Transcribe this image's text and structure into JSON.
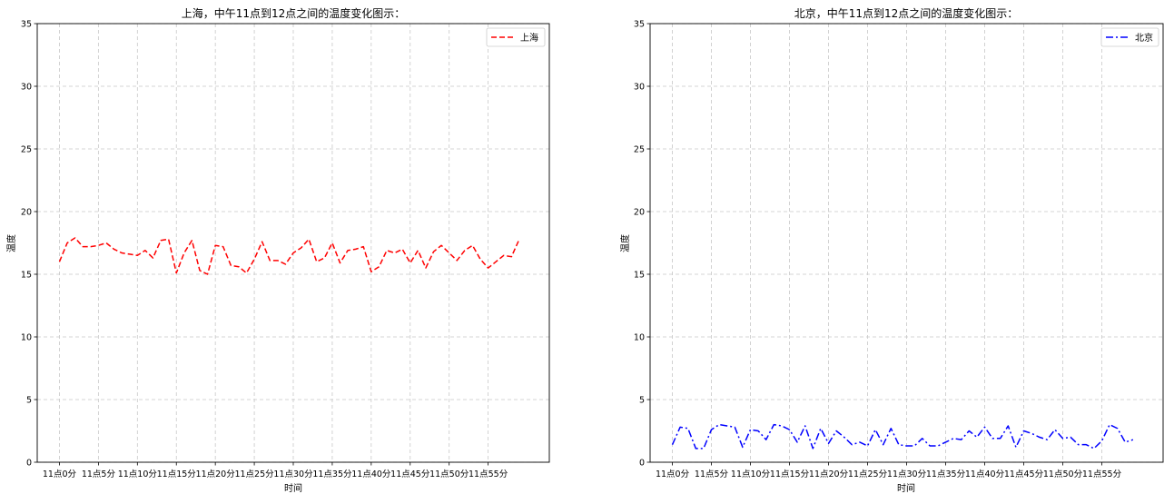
{
  "chart_data": [
    {
      "type": "line",
      "title": "上海，中午11点到12点之间的温度变化图示：",
      "xlabel": "时间",
      "ylabel": "温度",
      "ylim": [
        0,
        35
      ],
      "yticks": [
        0,
        5,
        10,
        15,
        20,
        25,
        30,
        35
      ],
      "xlim": [
        -2.85,
        62.85
      ],
      "xtick_positions": [
        0,
        5,
        10,
        15,
        20,
        25,
        30,
        35,
        40,
        45,
        50,
        55
      ],
      "xtick_labels": [
        "11点0分",
        "11点5分",
        "11点10分",
        "11点15分",
        "11点20分",
        "11点25分",
        "11点30分",
        "11点35分",
        "11点40分",
        "11点45分",
        "11点50分",
        "11点55分"
      ],
      "grid": true,
      "legend_position": "top-right",
      "series": [
        {
          "name": "上海",
          "color": "#ff0000",
          "linestyle": "dashed",
          "x": [
            0,
            1,
            2,
            3,
            4,
            5,
            6,
            7,
            8,
            9,
            10,
            11,
            12,
            13,
            14,
            15,
            16,
            17,
            18,
            19,
            20,
            21,
            22,
            23,
            24,
            25,
            26,
            27,
            28,
            29,
            30,
            31,
            32,
            33,
            34,
            35,
            36,
            37,
            38,
            39,
            40,
            41,
            42,
            43,
            44,
            45,
            46,
            47,
            48,
            49,
            50,
            51,
            52,
            53,
            54,
            55,
            56,
            57,
            58,
            59
          ],
          "values": [
            16.0,
            17.5,
            17.9,
            17.2,
            17.2,
            17.3,
            17.5,
            17.0,
            16.7,
            16.6,
            16.5,
            16.9,
            16.3,
            17.7,
            17.8,
            15.1,
            16.7,
            17.7,
            15.3,
            15.0,
            17.3,
            17.2,
            15.7,
            15.6,
            15.1,
            16.2,
            17.6,
            16.1,
            16.1,
            15.8,
            16.7,
            17.1,
            17.8,
            16.0,
            16.3,
            17.5,
            15.9,
            16.9,
            17.0,
            17.2,
            15.2,
            15.6,
            16.9,
            16.7,
            17.0,
            15.9,
            16.9,
            15.5,
            16.8,
            17.3,
            16.7,
            16.1,
            16.9,
            17.3,
            16.2,
            15.5,
            16.0,
            16.5,
            16.4,
            17.8
          ]
        }
      ]
    },
    {
      "type": "line",
      "title": "北京，中午11点到12点之间的温度变化图示：",
      "xlabel": "时间",
      "ylabel": "温度",
      "ylim": [
        0,
        35
      ],
      "yticks": [
        0,
        5,
        10,
        15,
        20,
        25,
        30,
        35
      ],
      "xlim": [
        -2.85,
        62.85
      ],
      "xtick_positions": [
        0,
        5,
        10,
        15,
        20,
        25,
        30,
        35,
        40,
        45,
        50,
        55
      ],
      "xtick_labels": [
        "11点0分",
        "11点5分",
        "11点10分",
        "11点15分",
        "11点20分",
        "11点25分",
        "11点30分",
        "11点35分",
        "11点40分",
        "11点45分",
        "11点50分",
        "11点55分"
      ],
      "grid": true,
      "legend_position": "top-right",
      "series": [
        {
          "name": "北京",
          "color": "#0000ff",
          "linestyle": "dashdot",
          "x": [
            0,
            1,
            2,
            3,
            4,
            5,
            6,
            7,
            8,
            9,
            10,
            11,
            12,
            13,
            14,
            15,
            16,
            17,
            18,
            19,
            20,
            21,
            22,
            23,
            24,
            25,
            26,
            27,
            28,
            29,
            30,
            31,
            32,
            33,
            34,
            35,
            36,
            37,
            38,
            39,
            40,
            41,
            42,
            43,
            44,
            45,
            46,
            47,
            48,
            49,
            50,
            51,
            52,
            53,
            54,
            55,
            56,
            57,
            58,
            59
          ],
          "values": [
            1.4,
            2.8,
            2.7,
            1.1,
            1.1,
            2.6,
            3.0,
            2.9,
            2.8,
            1.2,
            2.6,
            2.5,
            1.8,
            3.0,
            2.9,
            2.6,
            1.6,
            2.9,
            1.1,
            2.7,
            1.5,
            2.5,
            2.0,
            1.4,
            1.6,
            1.3,
            2.6,
            1.4,
            2.7,
            1.4,
            1.3,
            1.3,
            1.9,
            1.3,
            1.3,
            1.6,
            1.9,
            1.8,
            2.5,
            2.0,
            2.8,
            1.9,
            1.9,
            2.9,
            1.2,
            2.5,
            2.3,
            2.0,
            1.8,
            2.6,
            1.9,
            2.0,
            1.4,
            1.4,
            1.1,
            1.7,
            3.0,
            2.7,
            1.6,
            1.8
          ]
        }
      ]
    }
  ]
}
